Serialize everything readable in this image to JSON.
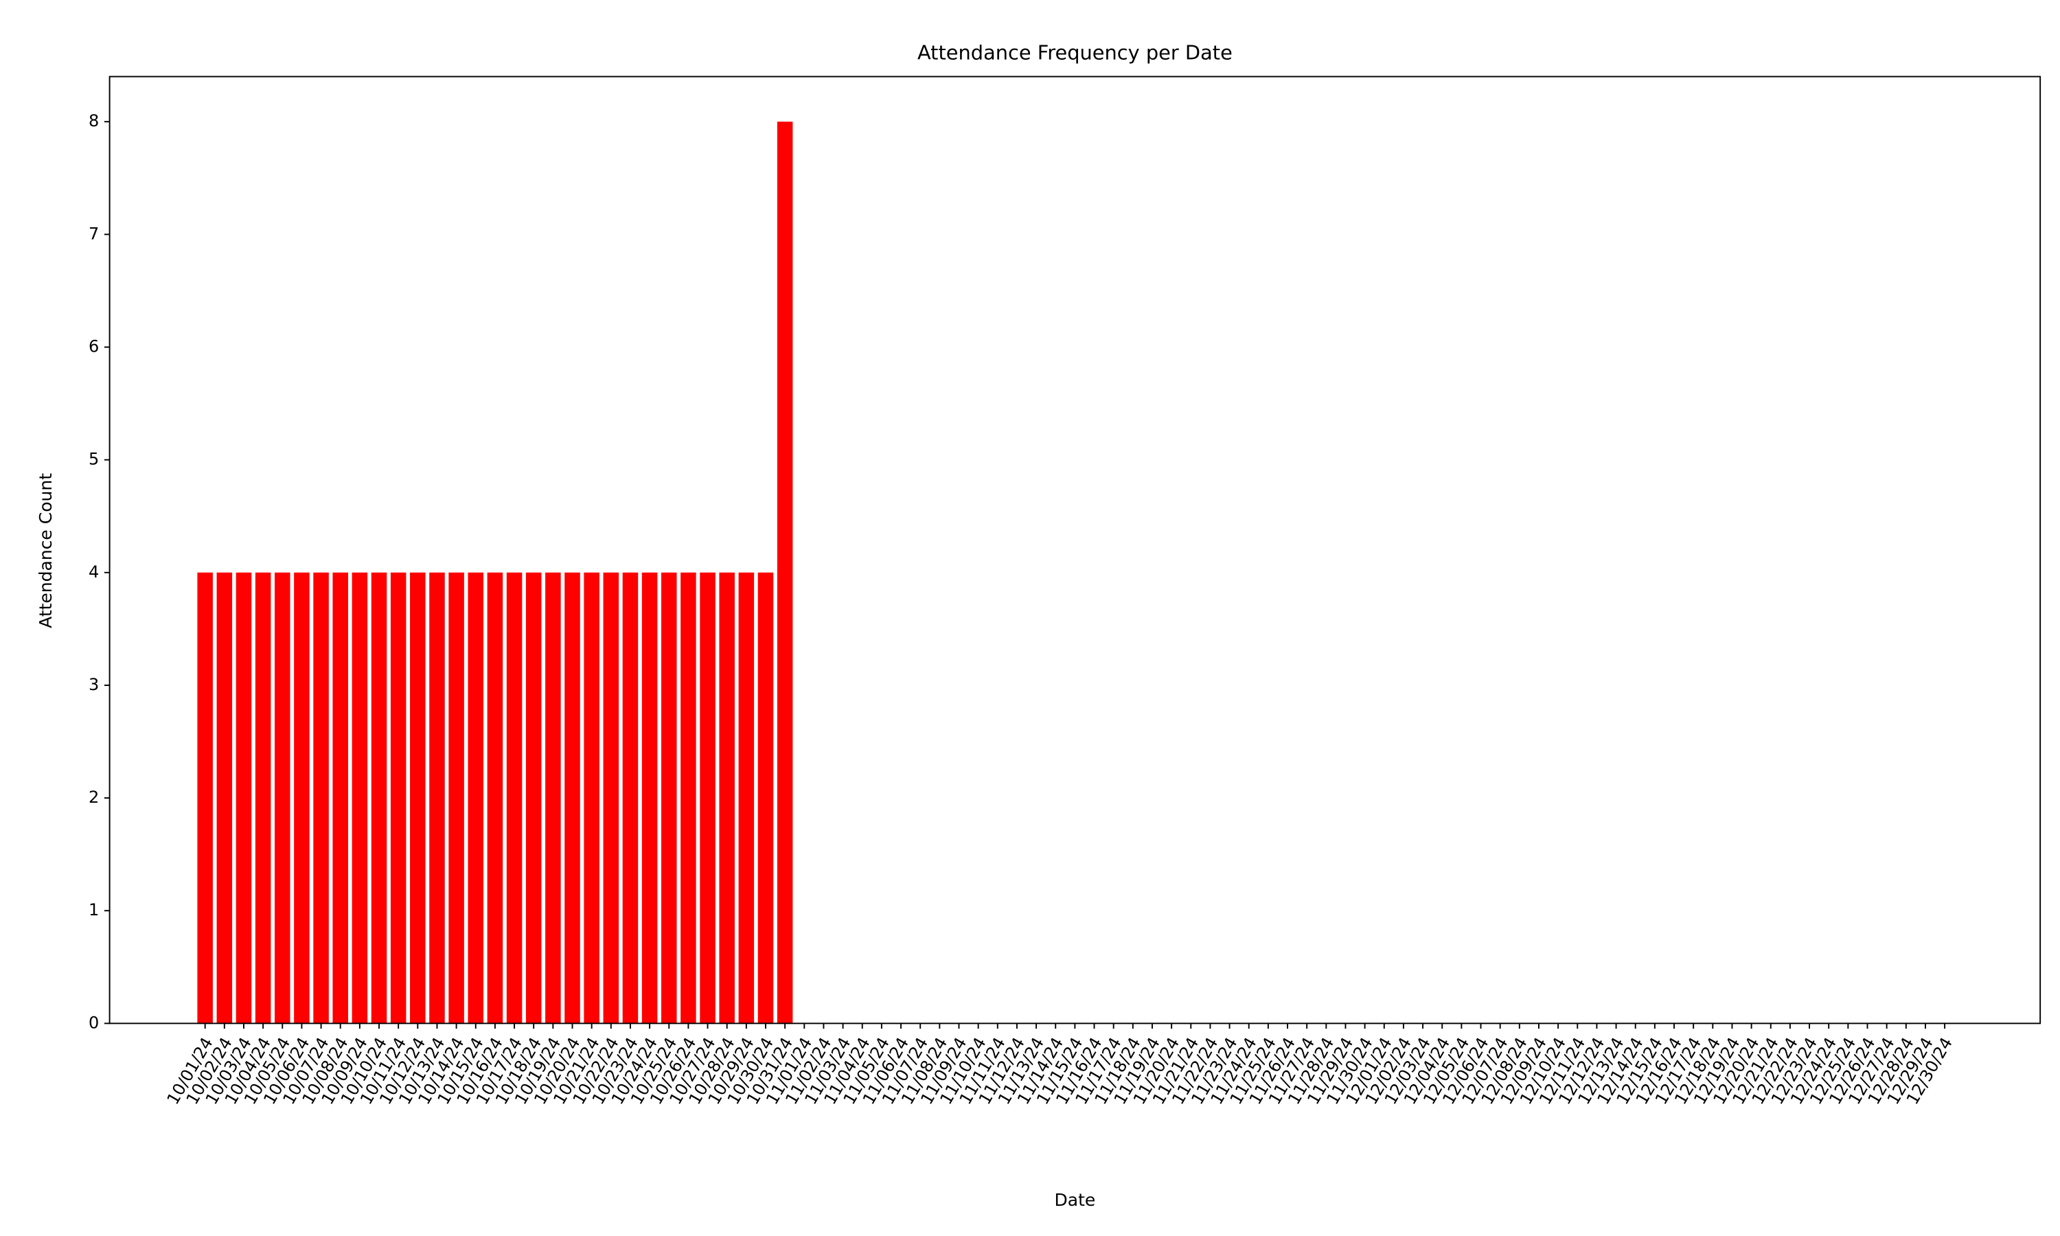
{
  "chart_data": {
    "type": "bar",
    "title": "Attendance Frequency per Date",
    "xlabel": "Date",
    "ylabel": "Attendance Count",
    "categories": [
      "10/01/24",
      "10/02/24",
      "10/03/24",
      "10/04/24",
      "10/05/24",
      "10/06/24",
      "10/07/24",
      "10/08/24",
      "10/09/24",
      "10/10/24",
      "10/11/24",
      "10/12/24",
      "10/13/24",
      "10/14/24",
      "10/15/24",
      "10/16/24",
      "10/17/24",
      "10/18/24",
      "10/19/24",
      "10/20/24",
      "10/21/24",
      "10/22/24",
      "10/23/24",
      "10/24/24",
      "10/25/24",
      "10/26/24",
      "10/27/24",
      "10/28/24",
      "10/29/24",
      "10/30/24",
      "10/31/24",
      "11/01/24",
      "11/02/24",
      "11/03/24",
      "11/04/24",
      "11/05/24",
      "11/06/24",
      "11/07/24",
      "11/08/24",
      "11/09/24",
      "11/10/24",
      "11/11/24",
      "11/12/24",
      "11/13/24",
      "11/14/24",
      "11/15/24",
      "11/16/24",
      "11/17/24",
      "11/18/24",
      "11/19/24",
      "11/20/24",
      "11/21/24",
      "11/22/24",
      "11/23/24",
      "11/24/24",
      "11/25/24",
      "11/26/24",
      "11/27/24",
      "11/28/24",
      "11/29/24",
      "11/30/24",
      "12/01/24",
      "12/02/24",
      "12/03/24",
      "12/04/24",
      "12/05/24",
      "12/06/24",
      "12/07/24",
      "12/08/24",
      "12/09/24",
      "12/10/24",
      "12/11/24",
      "12/12/24",
      "12/13/24",
      "12/14/24",
      "12/15/24",
      "12/16/24",
      "12/17/24",
      "12/18/24",
      "12/19/24",
      "12/20/24",
      "12/21/24",
      "12/22/24",
      "12/23/24",
      "12/24/24",
      "12/25/24",
      "12/26/24",
      "12/27/24",
      "12/28/24",
      "12/29/24",
      "12/30/24"
    ],
    "values": [
      4,
      4,
      4,
      4,
      4,
      4,
      4,
      4,
      4,
      4,
      4,
      4,
      4,
      4,
      4,
      4,
      4,
      4,
      4,
      4,
      4,
      4,
      4,
      4,
      4,
      4,
      4,
      4,
      4,
      4,
      8,
      0,
      0,
      0,
      0,
      0,
      0,
      0,
      0,
      0,
      0,
      0,
      0,
      0,
      0,
      0,
      0,
      0,
      0,
      0,
      0,
      0,
      0,
      0,
      0,
      0,
      0,
      0,
      0,
      0,
      0,
      0,
      0,
      0,
      0,
      0,
      0,
      0,
      0,
      0,
      0,
      0,
      0,
      0,
      0,
      0,
      0,
      0,
      0,
      0,
      0,
      0,
      0,
      0,
      0,
      0,
      0,
      0,
      0,
      0,
      0
    ],
    "color": "#ff0000",
    "ylim": [
      0,
      8.4
    ],
    "yticks": [
      0,
      1,
      2,
      3,
      4,
      5,
      6,
      7,
      8
    ],
    "grid": false
  }
}
